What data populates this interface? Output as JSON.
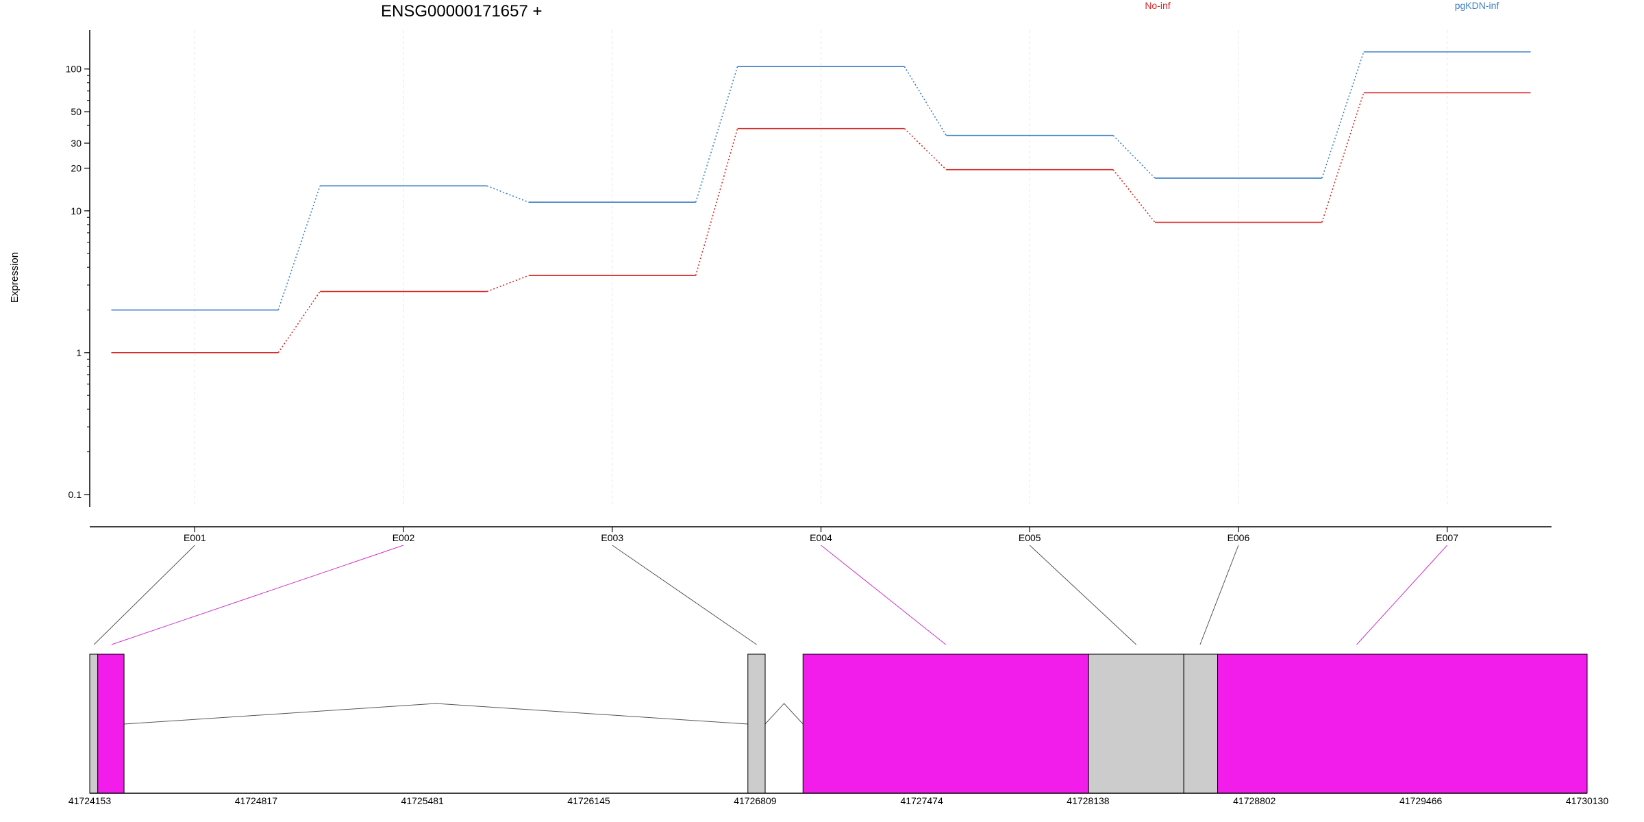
{
  "chart_data": [
    {
      "type": "line",
      "title": "ENSG00000171657 +",
      "xlabel": "",
      "ylabel": "Expression",
      "y_scale": "log",
      "ylim": [
        0.08,
        170
      ],
      "y_ticks": [
        {
          "value": 0.1,
          "label": "0.1"
        },
        {
          "value": 1,
          "label": "1"
        },
        {
          "value": 10,
          "label": "10"
        },
        {
          "value": 20,
          "label": "20"
        },
        {
          "value": 30,
          "label": "30"
        },
        {
          "value": 50,
          "label": "50"
        },
        {
          "value": 100,
          "label": "100"
        }
      ],
      "categories": [
        "E001",
        "E002",
        "E003",
        "E004",
        "E005",
        "E006",
        "E007"
      ],
      "grid": true,
      "legend_position": "top-right",
      "series": [
        {
          "name": "No-inf",
          "color": "#d62728",
          "values": [
            1.0,
            2.7,
            3.5,
            38,
            19.5,
            8.3,
            68
          ]
        },
        {
          "name": "pgKDN-inf",
          "color": "#3a7fc1",
          "values": [
            2.0,
            15,
            11.5,
            104,
            34,
            17,
            132
          ]
        }
      ]
    },
    {
      "type": "gene-structure",
      "x_ticks": [
        "41724153",
        "41724817",
        "41725481",
        "41726145",
        "41726809",
        "41727474",
        "41728138",
        "41728802",
        "41729466",
        "41730130"
      ],
      "xlim": [
        41724153,
        41730130
      ],
      "exons": [
        {
          "start": 41724153,
          "end": 41724185,
          "fill": "#cccccc"
        },
        {
          "start": 41724185,
          "end": 41724290,
          "fill": "#f21ceb"
        },
        {
          "start": 41726780,
          "end": 41726849,
          "fill": "#cccccc"
        },
        {
          "start": 41727000,
          "end": 41728140,
          "fill": "#f21ceb"
        },
        {
          "start": 41728140,
          "end": 41728520,
          "fill": "#cccccc"
        },
        {
          "start": 41728520,
          "end": 41728655,
          "fill": "#cccccc"
        },
        {
          "start": 41728655,
          "end": 41730130,
          "fill": "#f21ceb"
        }
      ],
      "introns": [
        {
          "start": 41724290,
          "end": 41726780
        },
        {
          "start": 41726849,
          "end": 41727000
        }
      ],
      "exon_links": [
        {
          "bin": "E001",
          "genomic": 41724170,
          "color": "#555555"
        },
        {
          "bin": "E002",
          "genomic": 41724240,
          "color": "#cc33cc"
        },
        {
          "bin": "E003",
          "genomic": 41726815,
          "color": "#555555"
        },
        {
          "bin": "E004",
          "genomic": 41727570,
          "color": "#cc33cc"
        },
        {
          "bin": "E005",
          "genomic": 41728330,
          "color": "#555555"
        },
        {
          "bin": "E006",
          "genomic": 41728585,
          "color": "#555555"
        },
        {
          "bin": "E007",
          "genomic": 41729210,
          "color": "#cc33cc"
        }
      ]
    }
  ]
}
